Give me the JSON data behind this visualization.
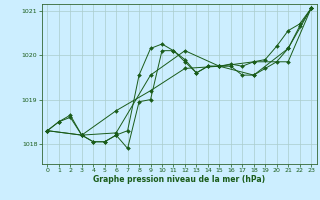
{
  "title": "",
  "xlabel": "Graphe pression niveau de la mer (hPa)",
  "ylabel": "",
  "bg_color": "#cceeff",
  "grid_color": "#aacccc",
  "line_color": "#1a5c1a",
  "xlim": [
    -0.5,
    23.5
  ],
  "ylim": [
    1017.55,
    1021.15
  ],
  "yticks": [
    1018,
    1019,
    1020,
    1021
  ],
  "xticks": [
    0,
    1,
    2,
    3,
    4,
    5,
    6,
    7,
    8,
    9,
    10,
    11,
    12,
    13,
    14,
    15,
    16,
    17,
    18,
    19,
    20,
    21,
    22,
    23
  ],
  "line1": {
    "x": [
      0,
      1,
      2,
      3,
      4,
      5,
      6,
      7,
      8,
      9,
      10,
      11,
      12,
      13,
      14,
      15,
      16,
      17,
      18,
      19,
      20,
      21,
      22,
      23
    ],
    "y": [
      1018.3,
      1018.5,
      1018.65,
      1018.2,
      1018.05,
      1018.05,
      1018.2,
      1018.3,
      1019.55,
      1020.15,
      1020.25,
      1020.1,
      1019.85,
      1019.6,
      1019.75,
      1019.75,
      1019.8,
      1019.75,
      1019.85,
      1019.9,
      1020.2,
      1020.55,
      1020.7,
      1021.05
    ]
  },
  "line2": {
    "x": [
      0,
      1,
      2,
      3,
      4,
      5,
      6,
      7,
      8,
      9,
      10,
      11,
      12,
      13,
      14,
      15,
      16,
      17,
      18,
      19,
      20,
      21,
      22,
      23
    ],
    "y": [
      1018.3,
      1018.5,
      1018.6,
      1018.2,
      1018.05,
      1018.05,
      1018.2,
      1017.9,
      1018.95,
      1019.0,
      1020.1,
      1020.1,
      1019.9,
      1019.6,
      1019.75,
      1019.75,
      1019.75,
      1019.55,
      1019.55,
      1019.7,
      1019.85,
      1020.15,
      1020.65,
      1021.05
    ]
  },
  "line3": {
    "x": [
      0,
      3,
      6,
      9,
      12,
      15,
      18,
      21,
      23
    ],
    "y": [
      1018.3,
      1018.2,
      1018.75,
      1019.2,
      1019.7,
      1019.75,
      1019.55,
      1020.15,
      1021.05
    ]
  },
  "line4": {
    "x": [
      0,
      3,
      6,
      9,
      12,
      15,
      18,
      21,
      23
    ],
    "y": [
      1018.3,
      1018.2,
      1018.25,
      1019.55,
      1020.1,
      1019.75,
      1019.85,
      1019.85,
      1021.05
    ]
  }
}
